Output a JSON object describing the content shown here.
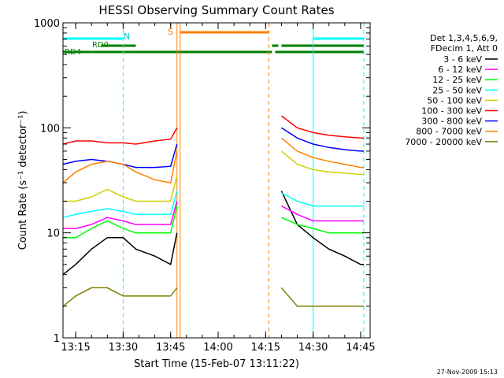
{
  "chart_data": {
    "type": "line",
    "title": "HESSI Observing Summary Count Rates",
    "xlabel": "Start Time (15-Feb-07 13:11:22)",
    "ylabel": "Count Rate (s⁻¹ detector⁻¹)",
    "y_scale": "log",
    "ylim": [
      1,
      1000
    ],
    "xlim": [
      "13:11",
      "14:48"
    ],
    "x_ticks": [
      "13:15",
      "13:30",
      "13:45",
      "14:00",
      "14:15",
      "14:30",
      "14:45"
    ],
    "y_ticks": [
      "1",
      "10",
      "100",
      "1000"
    ],
    "grid": false,
    "legend_position": "right",
    "legend_header": [
      "Det 1,3,4,5,6,9,",
      "FDecim 1, Att 0"
    ],
    "footer_date": "27-Nov-2009 15:13",
    "annotations": {
      "N": "N",
      "S": "S",
      "RD0": "RD0",
      "RD4": "RD4"
    },
    "flag_bars": [
      {
        "label": "N",
        "color": "#00ffff",
        "segments": [
          [
            "13:11",
            "13:30"
          ],
          [
            "14:30",
            "14:46"
          ]
        ]
      },
      {
        "label": "RD0",
        "color": "#008000",
        "segments": [
          [
            "13:23",
            "13:34"
          ],
          [
            "14:17",
            "14:19"
          ],
          [
            "14:20",
            "14:46"
          ]
        ]
      },
      {
        "label": "RD4",
        "color": "#008000",
        "segments": [
          [
            "13:11",
            "13:20"
          ],
          [
            "13:20",
            "13:34"
          ],
          [
            "13:34",
            "14:17"
          ],
          [
            "14:18",
            "14:46"
          ]
        ]
      },
      {
        "label": "S",
        "color": "#ff8000",
        "segments": [
          [
            "13:48",
            "14:16"
          ]
        ]
      }
    ],
    "vertical_markers": [
      {
        "time": "13:11",
        "color": "#00ffff",
        "style": "solid"
      },
      {
        "time": "13:30",
        "color": "#00ffff",
        "style": "dashed"
      },
      {
        "time": "13:47",
        "color": "#ff8000",
        "style": "solid"
      },
      {
        "time": "13:48",
        "color": "#ff8000",
        "style": "solid"
      },
      {
        "time": "14:16",
        "color": "#ff8000",
        "style": "dashed"
      },
      {
        "time": "14:30",
        "color": "#00ffff",
        "style": "solid"
      },
      {
        "time": "14:46",
        "color": "#00ffff",
        "style": "dashed"
      }
    ],
    "x": [
      "13:11",
      "13:15",
      "13:20",
      "13:25",
      "13:30",
      "13:34",
      "13:40",
      "13:45",
      "13:47",
      "14:18",
      "14:20",
      "14:25",
      "14:30",
      "14:35",
      "14:40",
      "14:45",
      "14:46"
    ],
    "series": [
      {
        "name": "3 - 6 keV",
        "color": "#000000",
        "values": [
          4,
          5,
          7,
          9,
          9,
          7,
          6,
          5,
          10,
          null,
          25,
          12,
          9,
          7,
          6,
          5,
          5
        ]
      },
      {
        "name": "6 - 12 keV",
        "color": "#ff00ff",
        "values": [
          11,
          11,
          12,
          14,
          13,
          12,
          12,
          12,
          20,
          null,
          18,
          15,
          13,
          13,
          13,
          13,
          13
        ]
      },
      {
        "name": "12 - 25 keV",
        "color": "#00ff00",
        "values": [
          9,
          9,
          11,
          13,
          11,
          10,
          10,
          10,
          18,
          null,
          14,
          12,
          11,
          10,
          10,
          10,
          10
        ]
      },
      {
        "name": "25 - 50 keV",
        "color": "#00ffff",
        "values": [
          14,
          15,
          16,
          17,
          16,
          15,
          15,
          15,
          25,
          null,
          24,
          20,
          18,
          18,
          18,
          18,
          18
        ]
      },
      {
        "name": "50 - 100 keV",
        "color": "#d0d000",
        "values": [
          20,
          20,
          22,
          26,
          22,
          20,
          20,
          20,
          35,
          null,
          60,
          45,
          40,
          38,
          37,
          36,
          36
        ]
      },
      {
        "name": "100 - 300 keV",
        "color": "#ff0000",
        "values": [
          70,
          75,
          75,
          72,
          72,
          70,
          75,
          78,
          100,
          null,
          130,
          100,
          90,
          85,
          82,
          80,
          80
        ]
      },
      {
        "name": "300 - 800 keV",
        "color": "#0000ff",
        "values": [
          45,
          48,
          50,
          48,
          45,
          42,
          42,
          43,
          70,
          null,
          100,
          80,
          70,
          65,
          62,
          60,
          60
        ]
      },
      {
        "name": "800 - 7000 keV",
        "color": "#ff8000",
        "values": [
          30,
          38,
          45,
          48,
          45,
          38,
          32,
          30,
          60,
          null,
          80,
          60,
          52,
          48,
          45,
          42,
          42
        ]
      },
      {
        "name": "7000 - 20000 keV",
        "color": "#808000",
        "values": [
          2,
          2.5,
          3,
          3,
          2.5,
          2.5,
          2.5,
          2.5,
          3,
          null,
          3,
          2,
          2,
          2,
          2,
          2,
          2
        ]
      }
    ]
  }
}
